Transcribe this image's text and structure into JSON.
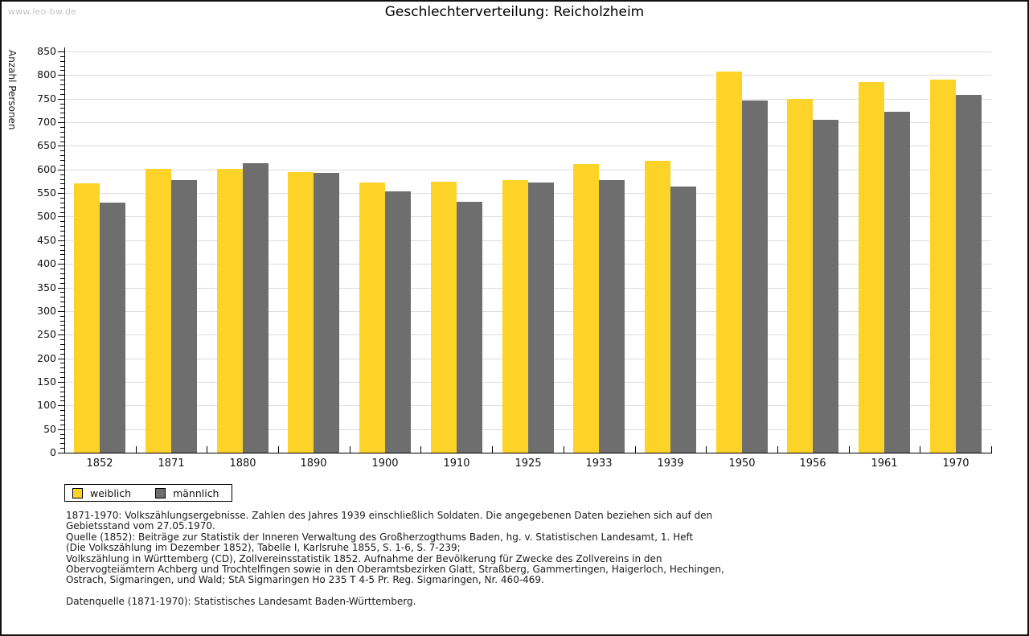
{
  "watermark": "www.leo-bw.de",
  "title": "Geschlechterverteilung: Reicholzheim",
  "legend": {
    "items": [
      {
        "label": "weiblich",
        "color": "#fdd32a"
      },
      {
        "label": "männlich",
        "color": "#6e6e6e"
      }
    ]
  },
  "footnotes": [
    "1871-1970: Volkszählungsergebnisse. Zahlen des Jahres 1939 einschließlich Soldaten. Die angegebenen Daten beziehen sich auf den",
    "Gebietsstand vom 27.05.1970.",
    "Quelle (1852): Beiträge zur Statistik der Inneren Verwaltung des Großherzogthums Baden, hg. v. Statistischen Landesamt, 1. Heft",
    "(Die Volkszählung im Dezember 1852), Tabelle I, Karlsruhe 1855, S. 1-6, S. 7-239;",
    "Volkszählung in Württemberg (CD), Zollvereinsstatistik 1852. Aufnahme der Bevölkerung für Zwecke des Zollvereins in den",
    "Obervogteiämtern Achberg und Trochtelfingen sowie in den Oberamtsbezirken Glatt, Straßberg, Gammertingen, Haigerloch, Hechingen,",
    "Ostrach, Sigmaringen, und Wald; StA Sigmaringen Ho 235 T 4-5 Pr. Reg. Sigmaringen, Nr. 460-469."
  ],
  "datasource_note": "Datenquelle (1871-1970): Statistisches Landesamt Baden-Württemberg.",
  "chart_data": {
    "type": "bar",
    "title": "Geschlechterverteilung: Reicholzheim",
    "ylabel": "Anzahl Personen",
    "xlabel": "",
    "categories": [
      "1852",
      "1871",
      "1880",
      "1890",
      "1900",
      "1910",
      "1925",
      "1933",
      "1939",
      "1950",
      "1956",
      "1961",
      "1970"
    ],
    "series": [
      {
        "name": "weiblich",
        "color": "#fdd32a",
        "values": [
          570,
          602,
          602,
          594,
          573,
          574,
          578,
          612,
          619,
          807,
          750,
          785,
          791
        ]
      },
      {
        "name": "männlich",
        "color": "#6e6e6e",
        "values": [
          530,
          578,
          614,
          592,
          553,
          532,
          572,
          577,
          563,
          746,
          705,
          723,
          758
        ]
      }
    ],
    "ylim": [
      0,
      850
    ],
    "y_major_step": 50,
    "y_minor_step": 10,
    "grid": true,
    "gridline_color": "#dcdcdc",
    "legend_position": "bottom-left"
  }
}
